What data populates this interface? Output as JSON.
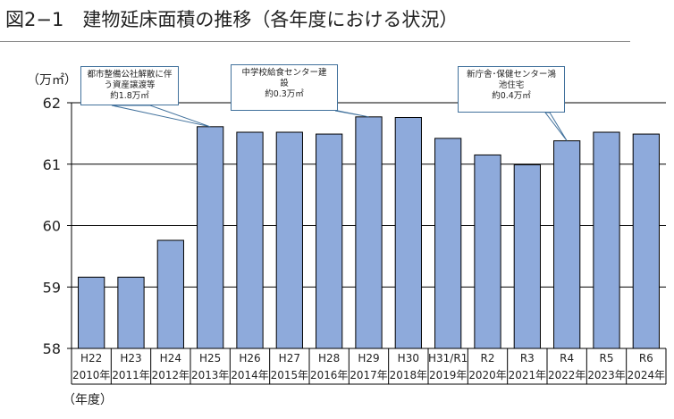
{
  "title": "図2−1　建物延床面積の推移（各年度における状況）",
  "chart_data": {
    "type": "bar",
    "ylabel": "（万㎡）",
    "xlabel": "（年度）",
    "ylim": [
      58,
      62
    ],
    "yticks": [
      58,
      59,
      60,
      61,
      62
    ],
    "grid": true,
    "bar_color": "#8eaadb",
    "categories": [
      "H22",
      "H23",
      "H24",
      "H25",
      "H26",
      "H27",
      "H28",
      "H29",
      "H30",
      "H31/R1",
      "R2",
      "R3",
      "R4",
      "R5",
      "R6"
    ],
    "category_years": [
      "2010年",
      "2011年",
      "2012年",
      "2013年",
      "2014年",
      "2015年",
      "2016年",
      "2017年",
      "2018年",
      "2019年",
      "2020年",
      "2021年",
      "2022年",
      "2023年",
      "2024年"
    ],
    "values": [
      59.16,
      59.16,
      59.76,
      61.61,
      61.52,
      61.52,
      61.49,
      61.77,
      61.76,
      61.42,
      61.15,
      60.99,
      61.38,
      61.52,
      61.49
    ],
    "annotations": [
      {
        "category": "H25",
        "lines": [
          "都市整備公社解散に伴",
          "う資産譲渡等",
          "約1.8万㎡"
        ]
      },
      {
        "category": "H29",
        "lines": [
          "中学校給食センター建",
          "設",
          "約0.3万㎡"
        ]
      },
      {
        "category": "R4",
        "lines": [
          "新庁舎･保健センター鴻",
          "池住宅",
          "約0.4万㎡"
        ]
      }
    ]
  }
}
